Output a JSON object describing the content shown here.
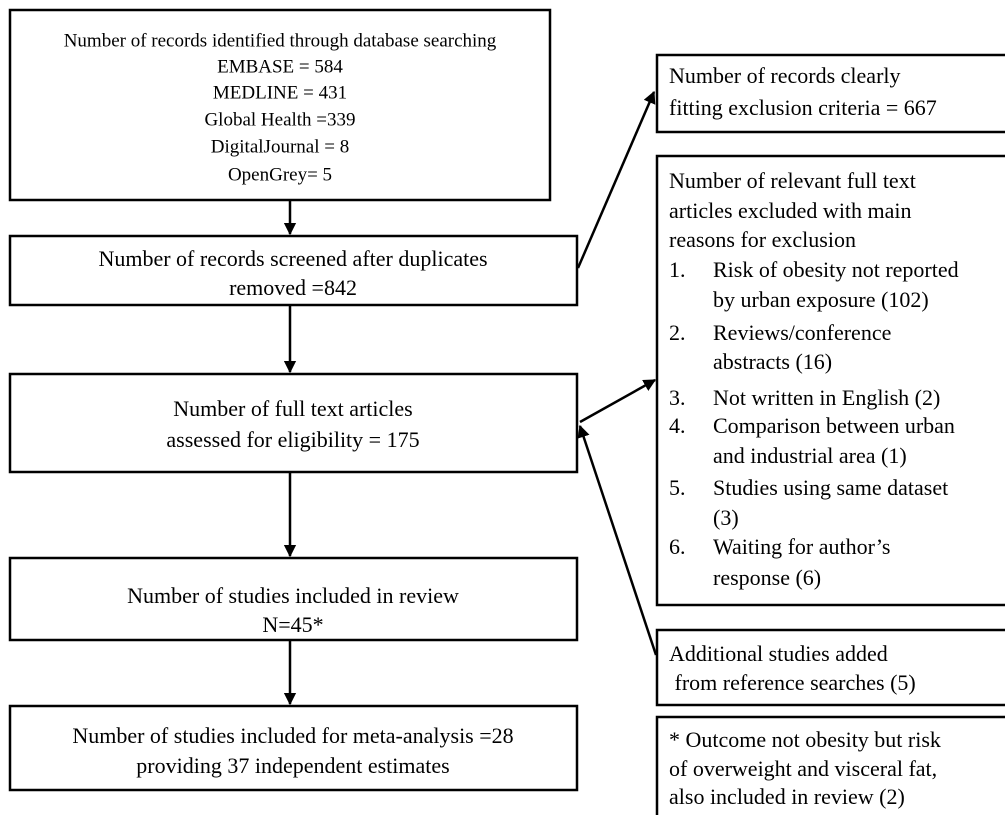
{
  "flow": [
    {
      "lines": [
        "Number of records identified through database searching",
        "EMBASE = 584",
        "MEDLINE = 431",
        "Global Health =339",
        "DigitalJournal = 8",
        "OpenGrey= 5"
      ]
    },
    {
      "lines": [
        "Number of records screened after duplicates",
        "removed =842"
      ]
    },
    {
      "lines": [
        "Number of full text articles",
        "assessed for eligibility = 175"
      ]
    },
    {
      "lines": [
        "Number of studies included in review",
        "N=45*"
      ]
    },
    {
      "lines": [
        "Number of studies included for meta-analysis =28",
        "providing 37 independent estimates"
      ]
    }
  ],
  "side": {
    "excluded_records": {
      "lines": [
        "Number of records clearly",
        "fitting exclusion criteria = 667"
      ]
    },
    "excluded_full_text": {
      "lines": [
        "Number of relevant full text",
        "articles excluded with main",
        "reasons for exclusion"
      ],
      "reasons": [
        {
          "number": "1.",
          "lines": [
            "Risk of obesity not reported",
            "by urban exposure (102)"
          ]
        },
        {
          "number": "2.",
          "lines": [
            "Reviews/conference",
            "abstracts (16)"
          ]
        },
        {
          "number": "3.",
          "lines": [
            "Not written in English (2)"
          ]
        },
        {
          "number": "4.",
          "lines": [
            "Comparison between urban",
            "and industrial area (1)"
          ]
        },
        {
          "number": "5.",
          "lines": [
            "Studies using same dataset",
            "(3)"
          ]
        },
        {
          "number": "6.",
          "lines": [
            "Waiting for author’s",
            "response (6)"
          ]
        }
      ]
    },
    "additional": {
      "lines": [
        "Additional studies added",
        " from reference searches (5)"
      ]
    },
    "footnote": {
      "lines": [
        "* Outcome not obesity but risk",
        "of overweight and visceral fat,",
        "also included in review (2)"
      ]
    }
  }
}
